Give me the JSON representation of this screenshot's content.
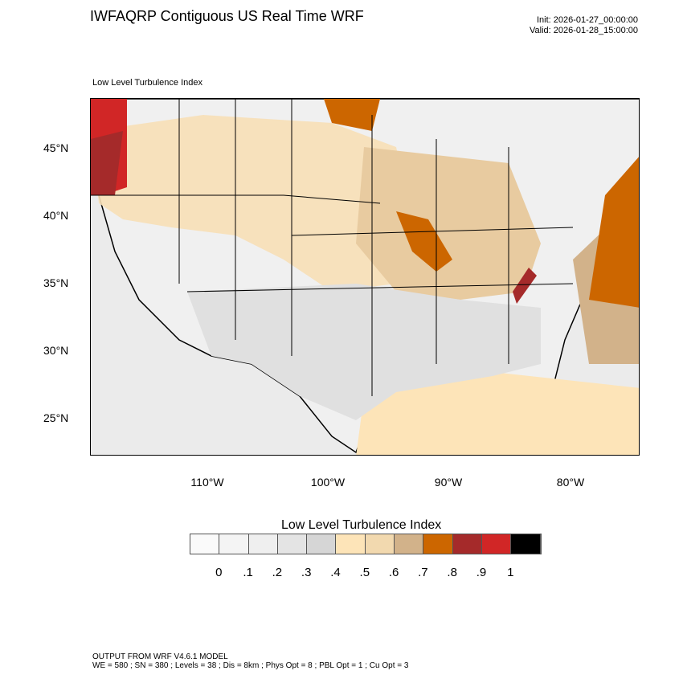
{
  "header": {
    "title": "IWFAQRP Contiguous US Real Time WRF",
    "init": "Init: 2026-01-27_00:00:00",
    "valid": "Valid: 2026-01-28_15:00:00",
    "subtitle": "Low Level Turbulence Index"
  },
  "map": {
    "lat_labels": [
      "45°N",
      "40°N",
      "35°N",
      "30°N",
      "25°N"
    ],
    "lon_labels": [
      "110°W",
      "100°W",
      "90°W",
      "80°W"
    ]
  },
  "colorbar": {
    "title": "Low Level Turbulence Index",
    "colors": [
      "#fafafa",
      "#f4f4f4",
      "#efefef",
      "#e4e4e4",
      "#d6d6d6",
      "#fde4b8",
      "#f2d9af",
      "#d2b28a",
      "#cc6600",
      "#a52a2a",
      "#d12626",
      "#000000"
    ],
    "labels": [
      "0",
      ".1",
      ".2",
      ".3",
      ".4",
      ".5",
      ".6",
      ".7",
      ".8",
      ".9",
      "1"
    ]
  },
  "footer": {
    "line1": "OUTPUT FROM WRF V4.6.1 MODEL",
    "line2": "WE = 580 ; SN = 380 ; Levels = 38 ; Dis = 8km ; Phys Opt = 8 ; PBL Opt = 1 ; Cu Opt = 3"
  }
}
